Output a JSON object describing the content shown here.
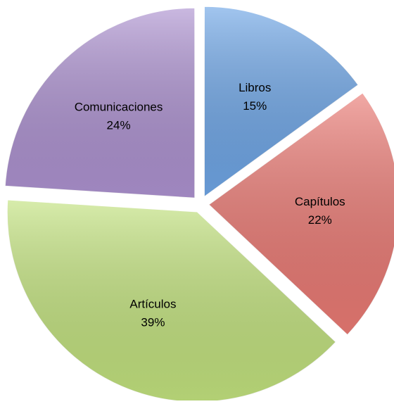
{
  "chart_data": {
    "type": "pie",
    "categories": [
      "Libros",
      "Capítulos",
      "Artículos",
      "Comunicaciones"
    ],
    "values": [
      15,
      22,
      39,
      24
    ],
    "value_labels": [
      "15%",
      "22%",
      "39%",
      "24%"
    ],
    "colors": [
      "#6fa6e6",
      "#ea7a74",
      "#c2e27e",
      "#ad92d0"
    ]
  }
}
